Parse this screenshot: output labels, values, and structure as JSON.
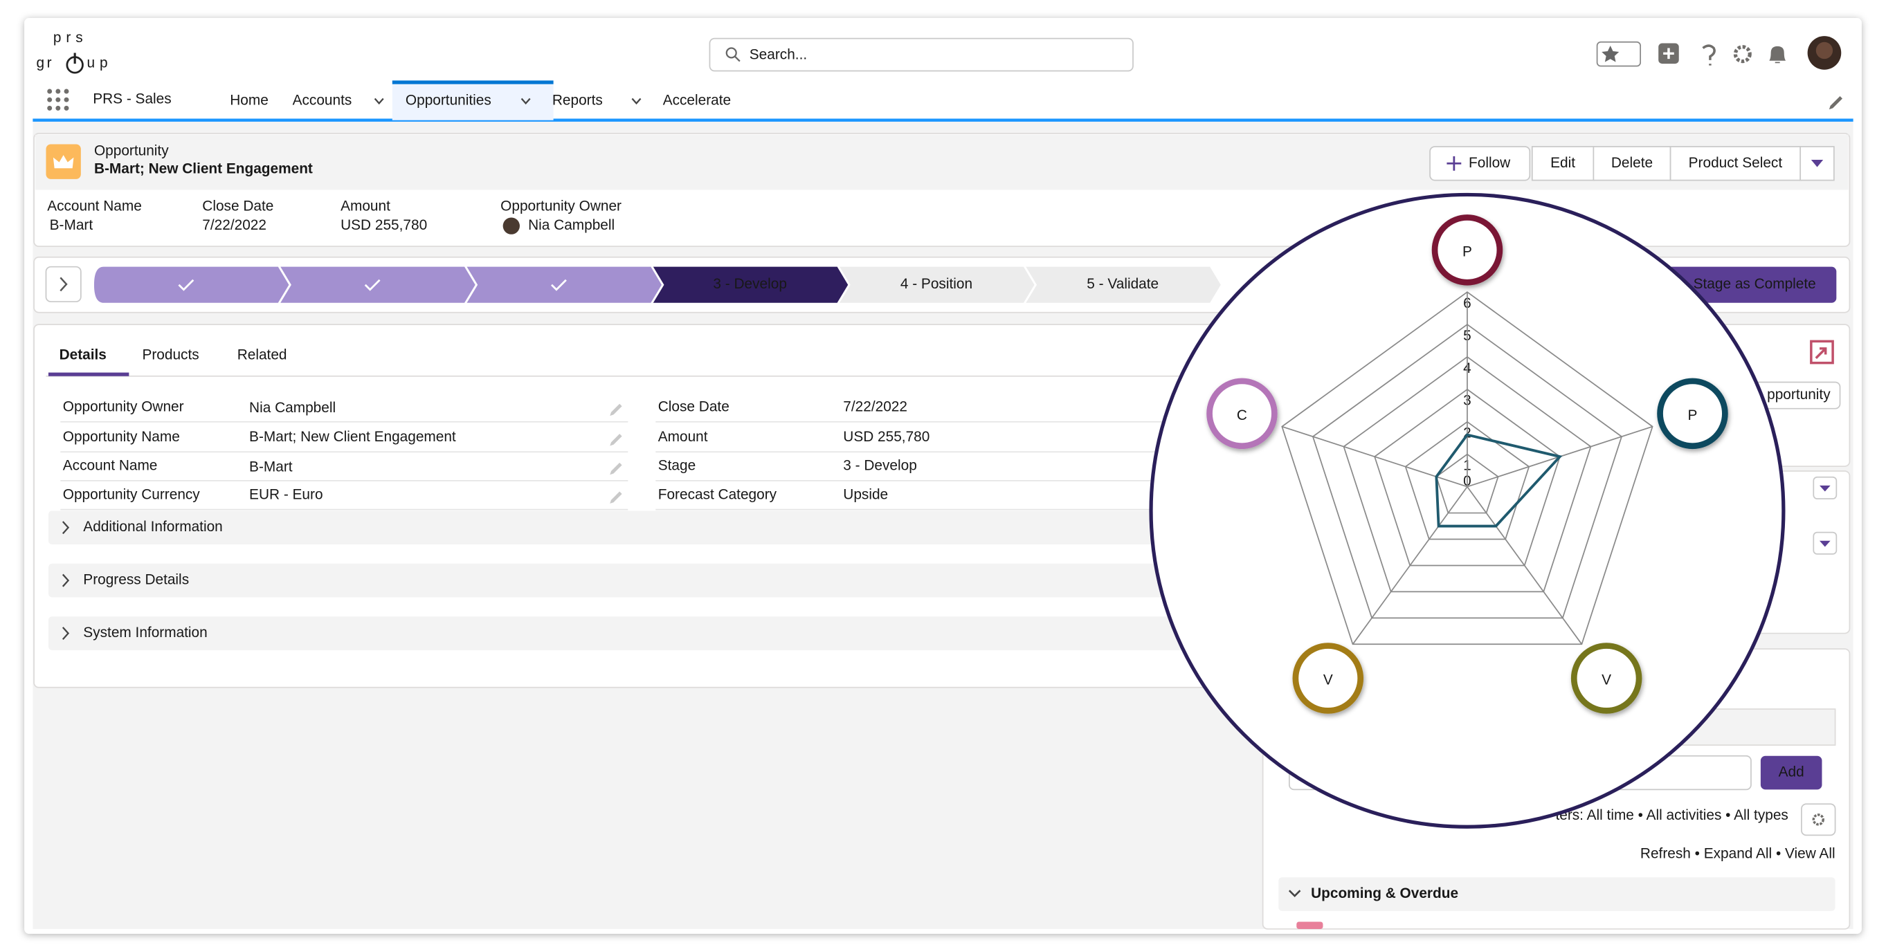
{
  "logo": [
    "prs",
    "gr",
    "up"
  ],
  "search_placeholder": "Search...",
  "app_name": "PRS - Sales",
  "nav": [
    "Home",
    "Accounts",
    "Opportunities",
    "Reports",
    "Accelerate"
  ],
  "record": {
    "object": "Opportunity",
    "title": "B-Mart; New Client Engagement",
    "buttons": [
      "Follow",
      "Edit",
      "Delete",
      "Product Select"
    ],
    "fields": [
      {
        "label": "Account Name",
        "value": "B-Mart"
      },
      {
        "label": "Close Date",
        "value": "7/22/2022"
      },
      {
        "label": "Amount",
        "value": "USD 255,780"
      },
      {
        "label": "Opportunity Owner",
        "value": "Nia Campbell"
      }
    ]
  },
  "path": {
    "stages": [
      null,
      null,
      null,
      "3 - Develop",
      "4 - Position",
      "5 - Validate"
    ],
    "button": "Stage as Complete"
  },
  "tabs": [
    "Details",
    "Products",
    "Related"
  ],
  "details": {
    "left": [
      {
        "label": "Opportunity Owner",
        "value": "Nia Campbell"
      },
      {
        "label": "Opportunity Name",
        "value": "B-Mart; New Client Engagement"
      },
      {
        "label": "Account Name",
        "value": "B-Mart"
      },
      {
        "label": "Opportunity Currency",
        "value": "EUR - Euro"
      }
    ],
    "right": [
      {
        "label": "Close Date",
        "value": "7/22/2022"
      },
      {
        "label": "Amount",
        "value": "USD 255,780"
      },
      {
        "label": "Stage",
        "value": "3 - Develop"
      },
      {
        "label": "Forecast Category",
        "value": "Upside"
      }
    ]
  },
  "sections": [
    "Additional Information",
    "Progress Details",
    "System Information"
  ],
  "sidebar": {
    "button": "pportunity",
    "add": "Add",
    "filters": "ters: All time • All activities • All types",
    "links": "Refresh • Expand All • View All",
    "upcoming": "Upcoming & Overdue"
  },
  "chart_data": {
    "type": "radar",
    "categories": [
      "P",
      "P",
      "V",
      "V",
      "C"
    ],
    "category_colors": [
      "#7a1535",
      "#0f4a5e",
      "#76761a",
      "#a37c12",
      "#b474b8"
    ],
    "values": [
      1.6,
      3,
      1.5,
      1.5,
      1
    ],
    "color": "#1f5a6e",
    "ylim": [
      0,
      6
    ],
    "yticks": [
      0,
      1,
      2,
      3,
      4,
      5,
      6
    ]
  }
}
